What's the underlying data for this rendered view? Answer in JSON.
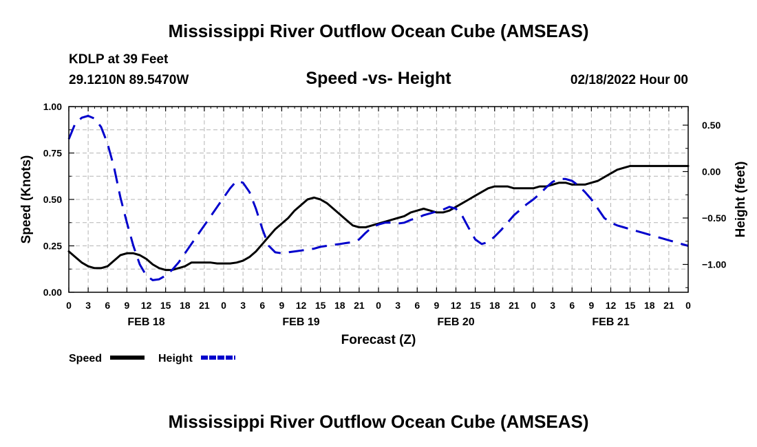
{
  "page": {
    "title": "Mississippi River Outflow Ocean Cube (AMSEAS)",
    "footer_title": "Mississippi River Outflow Ocean Cube (AMSEAS)",
    "station": "KDLP at 39 Feet",
    "coords": "29.1210N  89.5470W",
    "chart_subtitle": "Speed -vs- Height",
    "datetime": "02/18/2022 Hour 00"
  },
  "chart_data": {
    "type": "line",
    "title": "Speed -vs- Height",
    "xlabel": "Forecast (Z)",
    "ylabel": "Speed (Knots)",
    "y2label": "Height (feet)",
    "xlim": [
      0,
      96
    ],
    "ylim": [
      0,
      1.0
    ],
    "y2lim": [
      -1.3,
      0.7
    ],
    "grid": true,
    "x_tick_labels": [
      "0",
      "3",
      "6",
      "9",
      "12",
      "15",
      "18",
      "21",
      "0",
      "3",
      "6",
      "9",
      "12",
      "15",
      "18",
      "21",
      "0",
      "3",
      "6",
      "9",
      "12",
      "15",
      "18",
      "21",
      "0",
      "3",
      "6",
      "9",
      "12",
      "15",
      "18",
      "21",
      "0"
    ],
    "date_labels": [
      {
        "x": 12,
        "label": "FEB 18"
      },
      {
        "x": 36,
        "label": "FEB 19"
      },
      {
        "x": 60,
        "label": "FEB 20"
      },
      {
        "x": 84,
        "label": "FEB 21"
      }
    ],
    "y_ticks": [
      {
        "v": 0,
        "label": "0.00"
      },
      {
        "v": 0.25,
        "label": "0.25"
      },
      {
        "v": 0.5,
        "label": "0.50"
      },
      {
        "v": 0.75,
        "label": "0.75"
      },
      {
        "v": 1.0,
        "label": "1.00"
      }
    ],
    "y2_ticks": [
      {
        "v": 0.5,
        "label": "0.50"
      },
      {
        "v": 0.0,
        "label": "0.00"
      },
      {
        "v": -0.5,
        "label": "−0.50"
      },
      {
        "v": -1.0,
        "label": "−1.00"
      }
    ],
    "legend": [
      {
        "name": "Speed",
        "color": "#000000",
        "dash": "solid"
      },
      {
        "name": "Height",
        "color": "#0000cc",
        "dash": "dashed"
      }
    ],
    "series": [
      {
        "name": "Speed",
        "axis": "left",
        "color": "#000000",
        "x": [
          0,
          1,
          2,
          3,
          4,
          5,
          6,
          7,
          8,
          9,
          10,
          11,
          12,
          13,
          14,
          15,
          16,
          17,
          18,
          19,
          20,
          21,
          22,
          23,
          24,
          25,
          26,
          27,
          28,
          29,
          30,
          31,
          32,
          33,
          34,
          35,
          36,
          37,
          38,
          39,
          40,
          41,
          42,
          43,
          44,
          45,
          46,
          47,
          48,
          49,
          50,
          51,
          52,
          53,
          54,
          55,
          56,
          57,
          58,
          59,
          60,
          61,
          62,
          63,
          64,
          65,
          66,
          67,
          68,
          69,
          70,
          71,
          72,
          73,
          74,
          75,
          76,
          77,
          78,
          79,
          80,
          81,
          82,
          83,
          84,
          85,
          86,
          87,
          88,
          89,
          90,
          91,
          92,
          93,
          94,
          95,
          96
        ],
        "values": [
          0.22,
          0.19,
          0.16,
          0.14,
          0.13,
          0.13,
          0.14,
          0.17,
          0.2,
          0.21,
          0.21,
          0.2,
          0.18,
          0.15,
          0.13,
          0.12,
          0.12,
          0.13,
          0.14,
          0.16,
          0.16,
          0.16,
          0.16,
          0.155,
          0.155,
          0.155,
          0.16,
          0.17,
          0.19,
          0.22,
          0.26,
          0.3,
          0.34,
          0.37,
          0.4,
          0.44,
          0.47,
          0.5,
          0.51,
          0.5,
          0.48,
          0.45,
          0.42,
          0.39,
          0.36,
          0.35,
          0.35,
          0.36,
          0.37,
          0.38,
          0.39,
          0.4,
          0.41,
          0.43,
          0.44,
          0.45,
          0.44,
          0.43,
          0.43,
          0.44,
          0.46,
          0.48,
          0.5,
          0.52,
          0.54,
          0.56,
          0.57,
          0.57,
          0.57,
          0.56,
          0.56,
          0.56,
          0.56,
          0.57,
          0.57,
          0.58,
          0.59,
          0.59,
          0.58,
          0.58,
          0.58,
          0.59,
          0.6,
          0.62,
          0.64,
          0.66,
          0.67,
          0.68,
          0.68,
          0.68,
          0.68,
          0.68,
          0.68,
          0.68,
          0.68,
          0.68,
          0.68
        ]
      },
      {
        "name": "Height",
        "axis": "right",
        "color": "#0000cc",
        "x": [
          0,
          1,
          2,
          3,
          4,
          5,
          6,
          7,
          8,
          9,
          10,
          11,
          12,
          13,
          14,
          15,
          16,
          17,
          18,
          19,
          20,
          21,
          22,
          23,
          24,
          25,
          26,
          27,
          28,
          29,
          30,
          31,
          32,
          33,
          34,
          35,
          36,
          37,
          38,
          39,
          40,
          41,
          42,
          43,
          44,
          45,
          46,
          47,
          48,
          49,
          50,
          51,
          52,
          53,
          54,
          55,
          56,
          57,
          58,
          59,
          60,
          61,
          62,
          63,
          64,
          65,
          66,
          67,
          68,
          69,
          70,
          71,
          72,
          73,
          74,
          75,
          76,
          77,
          78,
          79,
          80,
          81,
          82,
          83,
          84,
          85,
          86,
          87,
          88,
          89,
          90,
          91,
          92,
          93,
          94,
          95,
          96
        ],
        "values": [
          0.35,
          0.52,
          0.58,
          0.6,
          0.57,
          0.48,
          0.3,
          0.05,
          -0.28,
          -0.55,
          -0.8,
          -1.0,
          -1.12,
          -1.17,
          -1.16,
          -1.12,
          -1.06,
          -0.98,
          -0.88,
          -0.78,
          -0.68,
          -0.58,
          -0.48,
          -0.38,
          -0.28,
          -0.18,
          -0.1,
          -0.12,
          -0.22,
          -0.4,
          -0.62,
          -0.8,
          -0.87,
          -0.88,
          -0.87,
          -0.86,
          -0.85,
          -0.84,
          -0.83,
          -0.81,
          -0.8,
          -0.79,
          -0.78,
          -0.77,
          -0.76,
          -0.73,
          -0.66,
          -0.6,
          -0.57,
          -0.55,
          -0.55,
          -0.56,
          -0.55,
          -0.52,
          -0.5,
          -0.47,
          -0.45,
          -0.43,
          -0.41,
          -0.38,
          -0.4,
          -0.48,
          -0.61,
          -0.73,
          -0.78,
          -0.76,
          -0.7,
          -0.63,
          -0.55,
          -0.47,
          -0.41,
          -0.35,
          -0.3,
          -0.24,
          -0.17,
          -0.11,
          -0.08,
          -0.08,
          -0.1,
          -0.15,
          -0.22,
          -0.3,
          -0.4,
          -0.5,
          -0.55,
          -0.58,
          -0.6,
          -0.62,
          -0.64,
          -0.66,
          -0.68,
          -0.7,
          -0.72,
          -0.74,
          -0.76,
          -0.78,
          -0.8
        ]
      }
    ]
  }
}
